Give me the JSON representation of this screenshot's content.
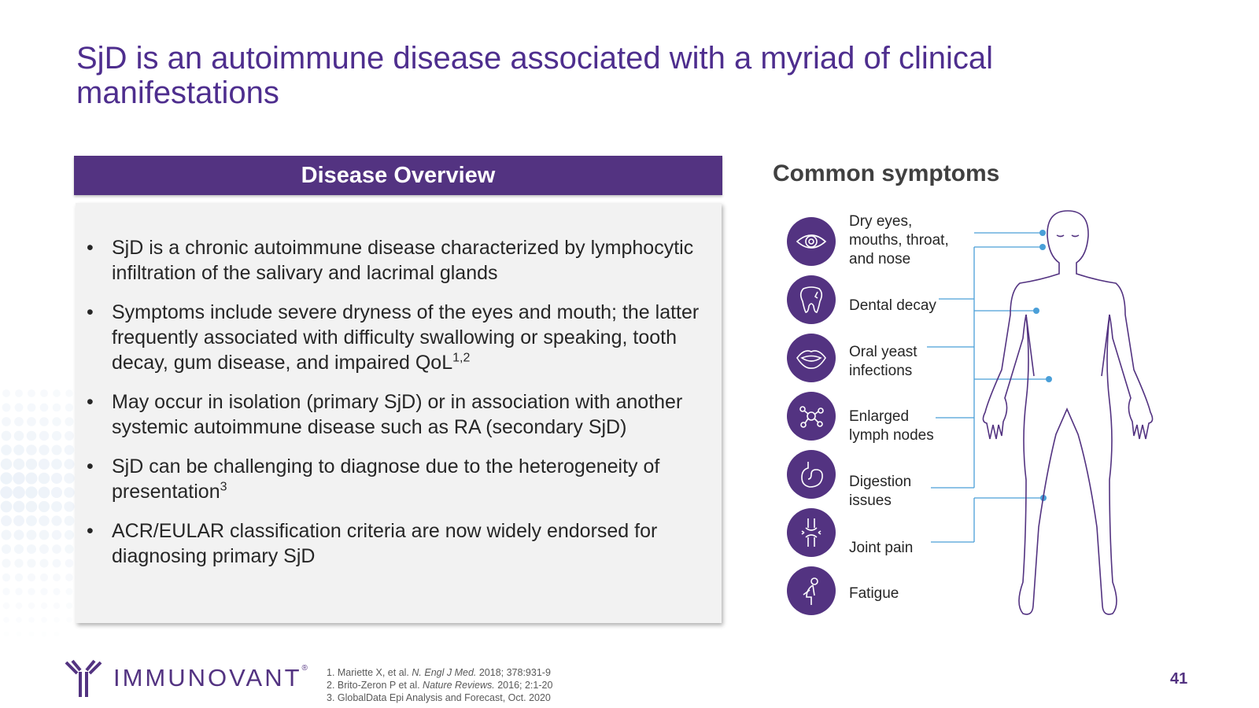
{
  "title": "SjD is an autoimmune disease associated with a myriad of clinical manifestations",
  "overview": {
    "header": "Disease Overview",
    "bullets": [
      {
        "text": "SjD is a chronic autoimmune disease characterized by lymphocytic infiltration of the salivary and lacrimal glands",
        "sup": ""
      },
      {
        "text": "Symptoms include severe dryness of the eyes and mouth; the latter frequently associated with difficulty swallowing or speaking, tooth decay, gum disease, and impaired QoL",
        "sup": "1,2"
      },
      {
        "text": "May occur in isolation (primary SjD) or in association with another systemic autoimmune disease such as RA (secondary SjD)",
        "sup": ""
      },
      {
        "text": "SjD can be challenging to diagnose due to the heterogeneity of presentation",
        "sup": "3"
      },
      {
        "text": "ACR/EULAR classification criteria are now widely endorsed for diagnosing primary SjD",
        "sup": ""
      }
    ],
    "bullet_char": "•"
  },
  "symptoms": {
    "title": "Common symptoms",
    "items": [
      {
        "label": "Dry eyes, mouths, throat, and nose",
        "icon": "eye-icon"
      },
      {
        "label": "Dental decay",
        "icon": "tooth-icon"
      },
      {
        "label": "Oral yeast infections",
        "icon": "mouth-icon"
      },
      {
        "label": "Enlarged lymph nodes",
        "icon": "lymph-node-icon"
      },
      {
        "label": "Digestion issues",
        "icon": "stomach-icon"
      },
      {
        "label": "Joint pain",
        "icon": "joint-icon"
      },
      {
        "label": "Fatigue",
        "icon": "fatigue-icon"
      }
    ]
  },
  "footer": {
    "logo_text": "IMMUNOVANT",
    "logo_mark": "®",
    "refs": [
      {
        "pre": "1. Mariette X, et al. ",
        "it": "N. Engl J Med.",
        "post": " 2018; 378:931-9"
      },
      {
        "pre": "2. Brito-Zeron P et al. ",
        "it": "Nature Reviews.",
        "post": " 2016; 2:1-20"
      },
      {
        "pre": "3. GlobalData Epi Analysis and Forecast, Oct. 2020",
        "it": "",
        "post": ""
      }
    ],
    "page_number": "41"
  },
  "colors": {
    "purple": "#533381",
    "title_purple": "#4e2e8e",
    "connector_blue": "#4a9fd8",
    "panel_gray": "#f2f2f2"
  }
}
